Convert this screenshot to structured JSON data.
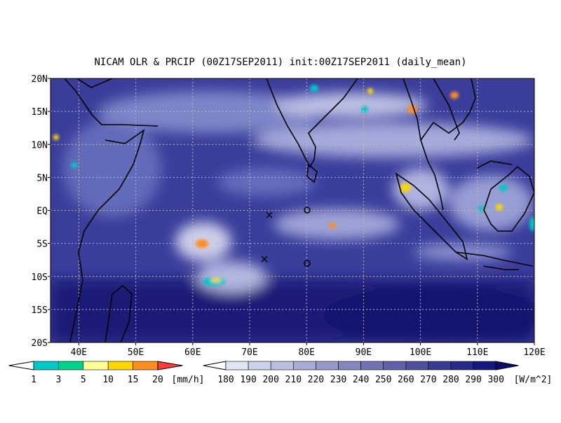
{
  "title": "NICAM OLR & PRCIP (00Z17SEP2011) init:00Z17SEP2011 (daily_mean)",
  "lat_labels": [
    "20N",
    "15N",
    "10N",
    "5N",
    "EQ",
    "5S",
    "10S",
    "15S",
    "20S"
  ],
  "lon_labels": [
    "40E",
    "50E",
    "60E",
    "70E",
    "80E",
    "90E",
    "100E",
    "110E",
    "120E"
  ],
  "precip_colorbar": {
    "labels": [
      "1",
      "3",
      "5",
      "10",
      "15",
      "20"
    ],
    "unit": "[mm/h]"
  },
  "olr_colorbar": {
    "labels": [
      "180",
      "190",
      "200",
      "210",
      "220",
      "230",
      "240",
      "250",
      "260",
      "270",
      "280",
      "290",
      "300"
    ],
    "unit": "[W/m^2]"
  }
}
